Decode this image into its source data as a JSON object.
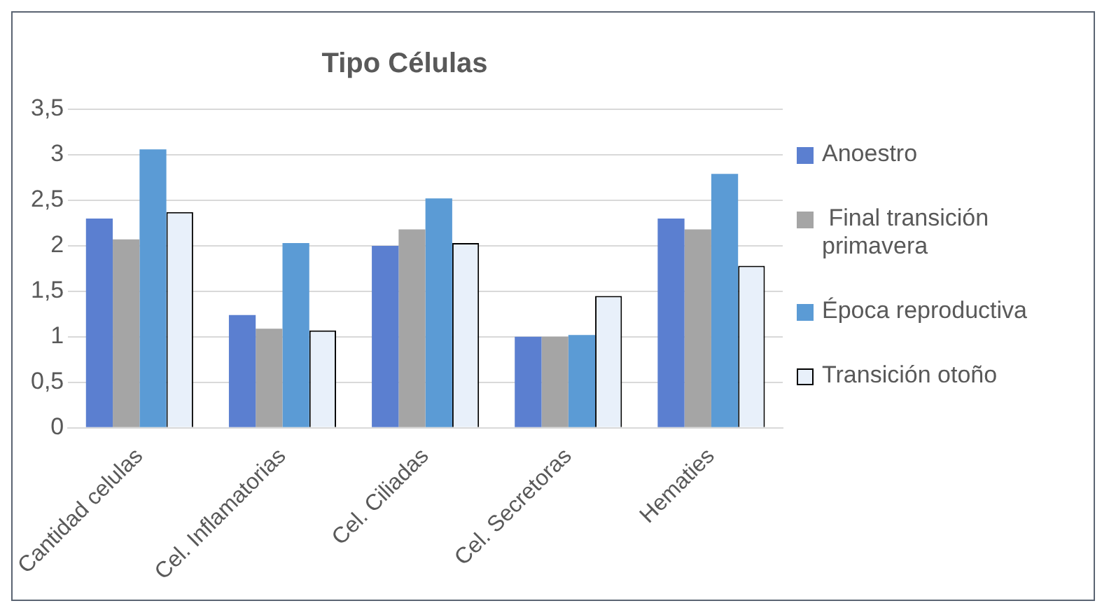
{
  "chart_data": {
    "type": "bar",
    "title": "Tipo Células",
    "categories": [
      "Cantidad celulas",
      "Cel. Inflamatorias",
      "Cel. Ciliadas",
      "Cel. Secretoras",
      "Hematies"
    ],
    "series": [
      {
        "name": "Anoestro",
        "color": "#5b7fd0",
        "values": [
          2.3,
          1.24,
          2.0,
          1.0,
          2.3
        ]
      },
      {
        "name": " Final transición primavera",
        "color": "#a5a5a5",
        "values": [
          2.07,
          1.09,
          2.18,
          1.0,
          2.18
        ]
      },
      {
        "name": "Época reproductiva",
        "color": "#5b9bd5",
        "values": [
          3.06,
          2.03,
          2.52,
          1.02,
          2.79
        ]
      },
      {
        "name": "Transición otoño",
        "color": "#e8f0fa",
        "values": [
          2.37,
          1.07,
          2.03,
          1.45,
          1.78
        ]
      }
    ],
    "ylim": [
      0,
      3.5
    ],
    "yticks": [
      0,
      {
        "value": 0.5,
        "label": "0,5"
      },
      1,
      {
        "value": 1.5,
        "label": "1,5"
      },
      2,
      {
        "value": 2.5,
        "label": "2,5"
      },
      3,
      {
        "value": 3.5,
        "label": "3,5"
      }
    ],
    "grid": "y",
    "legend": "right"
  }
}
